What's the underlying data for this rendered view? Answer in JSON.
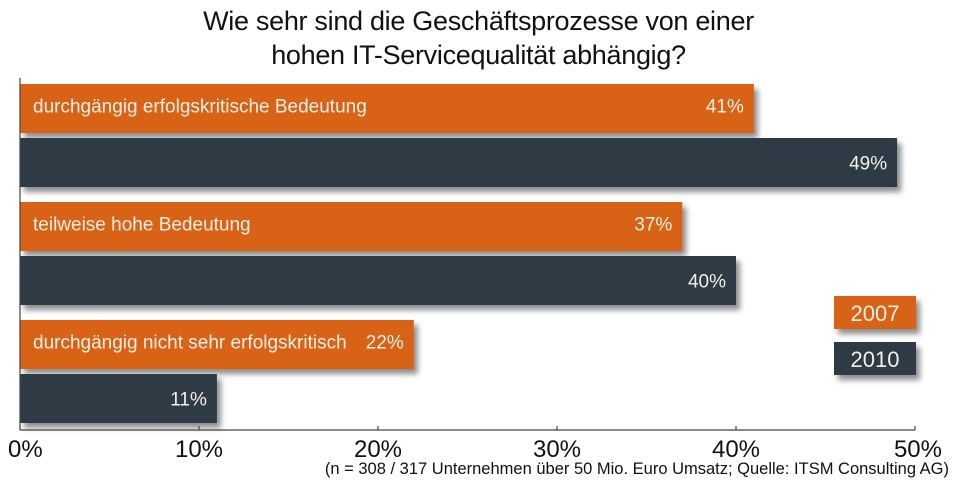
{
  "chart_data": {
    "type": "bar",
    "orientation": "horizontal",
    "title": "Wie sehr sind die Geschäftsprozesse von einer hohen IT-Servicequalität abhängig?",
    "title_lines": [
      "Wie sehr sind die Geschäftsprozesse von einer",
      "hohen IT-Servicequalität abhängig?"
    ],
    "categories": [
      "durchgängig erfolgskritische Bedeutung",
      "teilweise hohe Bedeutung",
      "durchgängig nicht sehr erfolgskritisch"
    ],
    "series": [
      {
        "name": "2007",
        "color": "#d86418",
        "values": [
          41,
          37,
          22
        ],
        "labels": [
          "41%",
          "37%",
          "22%"
        ]
      },
      {
        "name": "2010",
        "color": "#2f3a45",
        "values": [
          49,
          40,
          11
        ],
        "labels": [
          "49%",
          "40%",
          "11%"
        ]
      }
    ],
    "xlim": [
      0,
      50
    ],
    "xticks": [
      0,
      10,
      20,
      30,
      40,
      50
    ],
    "xtick_labels": [
      "0%",
      "10%",
      "20%",
      "30%",
      "40%",
      "50%"
    ],
    "xlabel": "",
    "ylabel": "",
    "grid": false,
    "legend": {
      "position": "right",
      "entries": [
        "2007",
        "2010"
      ]
    },
    "footnote": "(n = 308 / 317 Unternehmen über 50 Mio. Euro Umsatz; Quelle: ITSM Consulting AG)"
  }
}
